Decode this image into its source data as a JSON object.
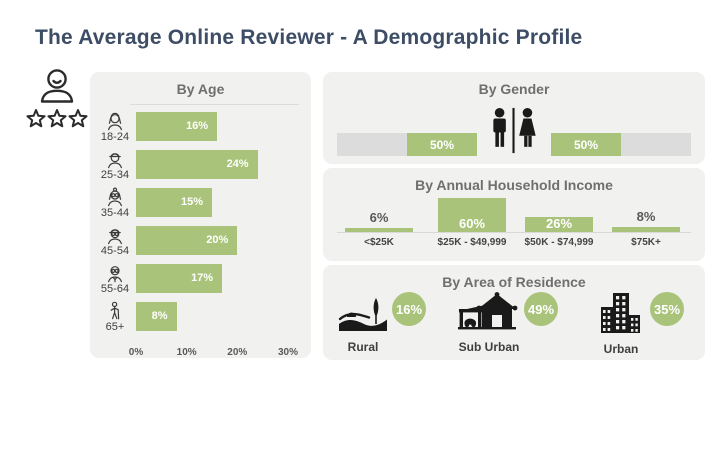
{
  "page": {
    "title": "The Average Online Reviewer - A Demographic Profile"
  },
  "reviewer_badge": {
    "icon": "reviewer-three-stars-icon"
  },
  "age_panel": {
    "title": "By Age",
    "axis_max": 30,
    "axis_ticks": [
      "0%",
      "10%",
      "20%",
      "30%"
    ],
    "rows": [
      {
        "icon": "young-woman-icon",
        "label": "18-24",
        "value": 16,
        "display": "16%"
      },
      {
        "icon": "man-cap-icon",
        "label": "25-34",
        "value": 24,
        "display": "24%"
      },
      {
        "icon": "woman-glasses-icon",
        "label": "35-44",
        "value": 15,
        "display": "15%"
      },
      {
        "icon": "man-cap-glasses-icon",
        "label": "45-54",
        "value": 20,
        "display": "20%"
      },
      {
        "icon": "older-man-icon",
        "label": "55-64",
        "value": 17,
        "display": "17%"
      },
      {
        "icon": "elderly-cane-icon",
        "label": "65+",
        "value": 8,
        "display": "8%"
      }
    ]
  },
  "gender_panel": {
    "title": "By Gender",
    "icon": "male-female-restroom-icon",
    "left_label": "50%",
    "right_label": "50%"
  },
  "income_panel": {
    "title": "By Annual Household Income",
    "bars": [
      {
        "label": "<$25K",
        "value": 6,
        "display": "6%"
      },
      {
        "label": "$25K - $49,999",
        "value": 60,
        "display": "60%"
      },
      {
        "label": "$50K - $74,999",
        "value": 26,
        "display": "26%"
      },
      {
        "label": "$75K+",
        "value": 8,
        "display": "8%"
      }
    ]
  },
  "residence_panel": {
    "title": "By Area of Residence",
    "items": [
      {
        "icon": "rural-landscape-icon",
        "label": "Rural",
        "display": "16%"
      },
      {
        "icon": "suburban-house-icon",
        "label": "Sub Urban",
        "display": "49%"
      },
      {
        "icon": "urban-buildings-icon",
        "label": "Urban",
        "display": "35%"
      }
    ]
  },
  "colors": {
    "accent_green": "#a9c47a",
    "bar_gray": "#dcdcdc",
    "panel_bg": "#f1f1ef",
    "title_blue": "#3e4d66",
    "heading_gray": "#6f6f6f",
    "icon_black": "#1a1a1a"
  },
  "chart_data": [
    {
      "type": "bar",
      "orientation": "horizontal",
      "title": "By Age",
      "categories": [
        "18-24",
        "25-34",
        "35-44",
        "45-54",
        "55-64",
        "65+"
      ],
      "values": [
        16,
        24,
        15,
        20,
        17,
        8
      ],
      "xlabel": "",
      "ylabel": "",
      "xlim": [
        0,
        30
      ],
      "tick_labels": [
        "0%",
        "10%",
        "20%",
        "30%"
      ],
      "unit": "%",
      "grid": false,
      "legend": "none"
    },
    {
      "type": "bar",
      "orientation": "horizontal",
      "title": "By Gender",
      "categories": [
        "Male",
        "Female"
      ],
      "values": [
        50,
        50
      ],
      "unit": "%",
      "grid": false,
      "legend": "none"
    },
    {
      "type": "bar",
      "orientation": "vertical",
      "title": "By Annual Household Income",
      "categories": [
        "<$25K",
        "$25K - $49,999",
        "$50K - $74,999",
        "$75K+"
      ],
      "values": [
        6,
        60,
        26,
        8
      ],
      "unit": "%",
      "grid": false,
      "legend": "none"
    },
    {
      "type": "bar",
      "orientation": "pictogram",
      "title": "By Area of Residence",
      "categories": [
        "Rural",
        "Sub Urban",
        "Urban"
      ],
      "values": [
        16,
        49,
        35
      ],
      "unit": "%",
      "grid": false,
      "legend": "none"
    }
  ]
}
